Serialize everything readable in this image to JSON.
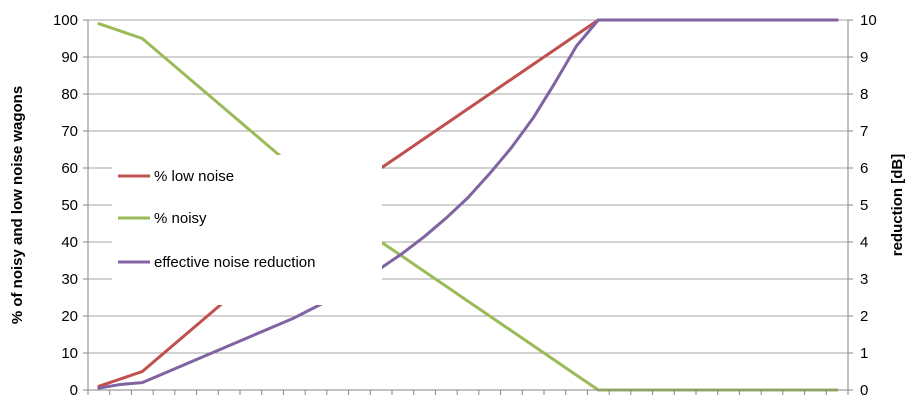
{
  "chart_data": {
    "type": "line",
    "title": "",
    "ylabel": "% of noisy and low noise wagons",
    "y2label": "reduction [dB]",
    "ylim": [
      0,
      100
    ],
    "y2lim": [
      0,
      10
    ],
    "yticks": [
      "0",
      "10",
      "20",
      "30",
      "40",
      "50",
      "60",
      "70",
      "80",
      "90",
      "100"
    ],
    "y2ticks": [
      "0",
      "1",
      "2",
      "3",
      "4",
      "5",
      "6",
      "7",
      "8",
      "9",
      "10"
    ],
    "x_count": 35,
    "x_labels_shown": false,
    "grid": "horizontal",
    "legend": "left-center",
    "series": [
      {
        "name": "% low noise",
        "axis": "left",
        "color": "#c0504d",
        "values": [
          1,
          3,
          5,
          10,
          15,
          20,
          25,
          30,
          35,
          40,
          45,
          50,
          55,
          60,
          64,
          68,
          72,
          76,
          80,
          84,
          88,
          92,
          96,
          100,
          100,
          100,
          100,
          100,
          100,
          100,
          100,
          100,
          100,
          100,
          100
        ],
        "note_x_span": 35
      },
      {
        "name": "% noisy",
        "axis": "left",
        "color": "#9bbb59",
        "values": [
          99,
          97,
          95,
          90,
          85,
          80,
          75,
          70,
          65,
          60,
          55,
          50,
          45,
          40,
          36,
          32,
          28,
          24,
          20,
          16,
          12,
          8,
          4,
          0,
          0,
          0,
          0,
          0,
          0,
          0,
          0,
          0,
          0,
          0,
          0
        ]
      },
      {
        "name": "effective noise reduction",
        "axis": "right",
        "color": "#8064a2",
        "values": [
          0.05,
          0.15,
          0.2,
          0.45,
          0.7,
          0.95,
          1.2,
          1.45,
          1.7,
          1.95,
          2.25,
          2.55,
          2.9,
          3.3,
          3.7,
          4.15,
          4.65,
          5.2,
          5.85,
          6.55,
          7.35,
          8.3,
          9.3,
          10,
          10,
          10,
          10,
          10,
          10,
          10,
          10,
          10,
          10,
          10,
          10
        ]
      }
    ]
  }
}
